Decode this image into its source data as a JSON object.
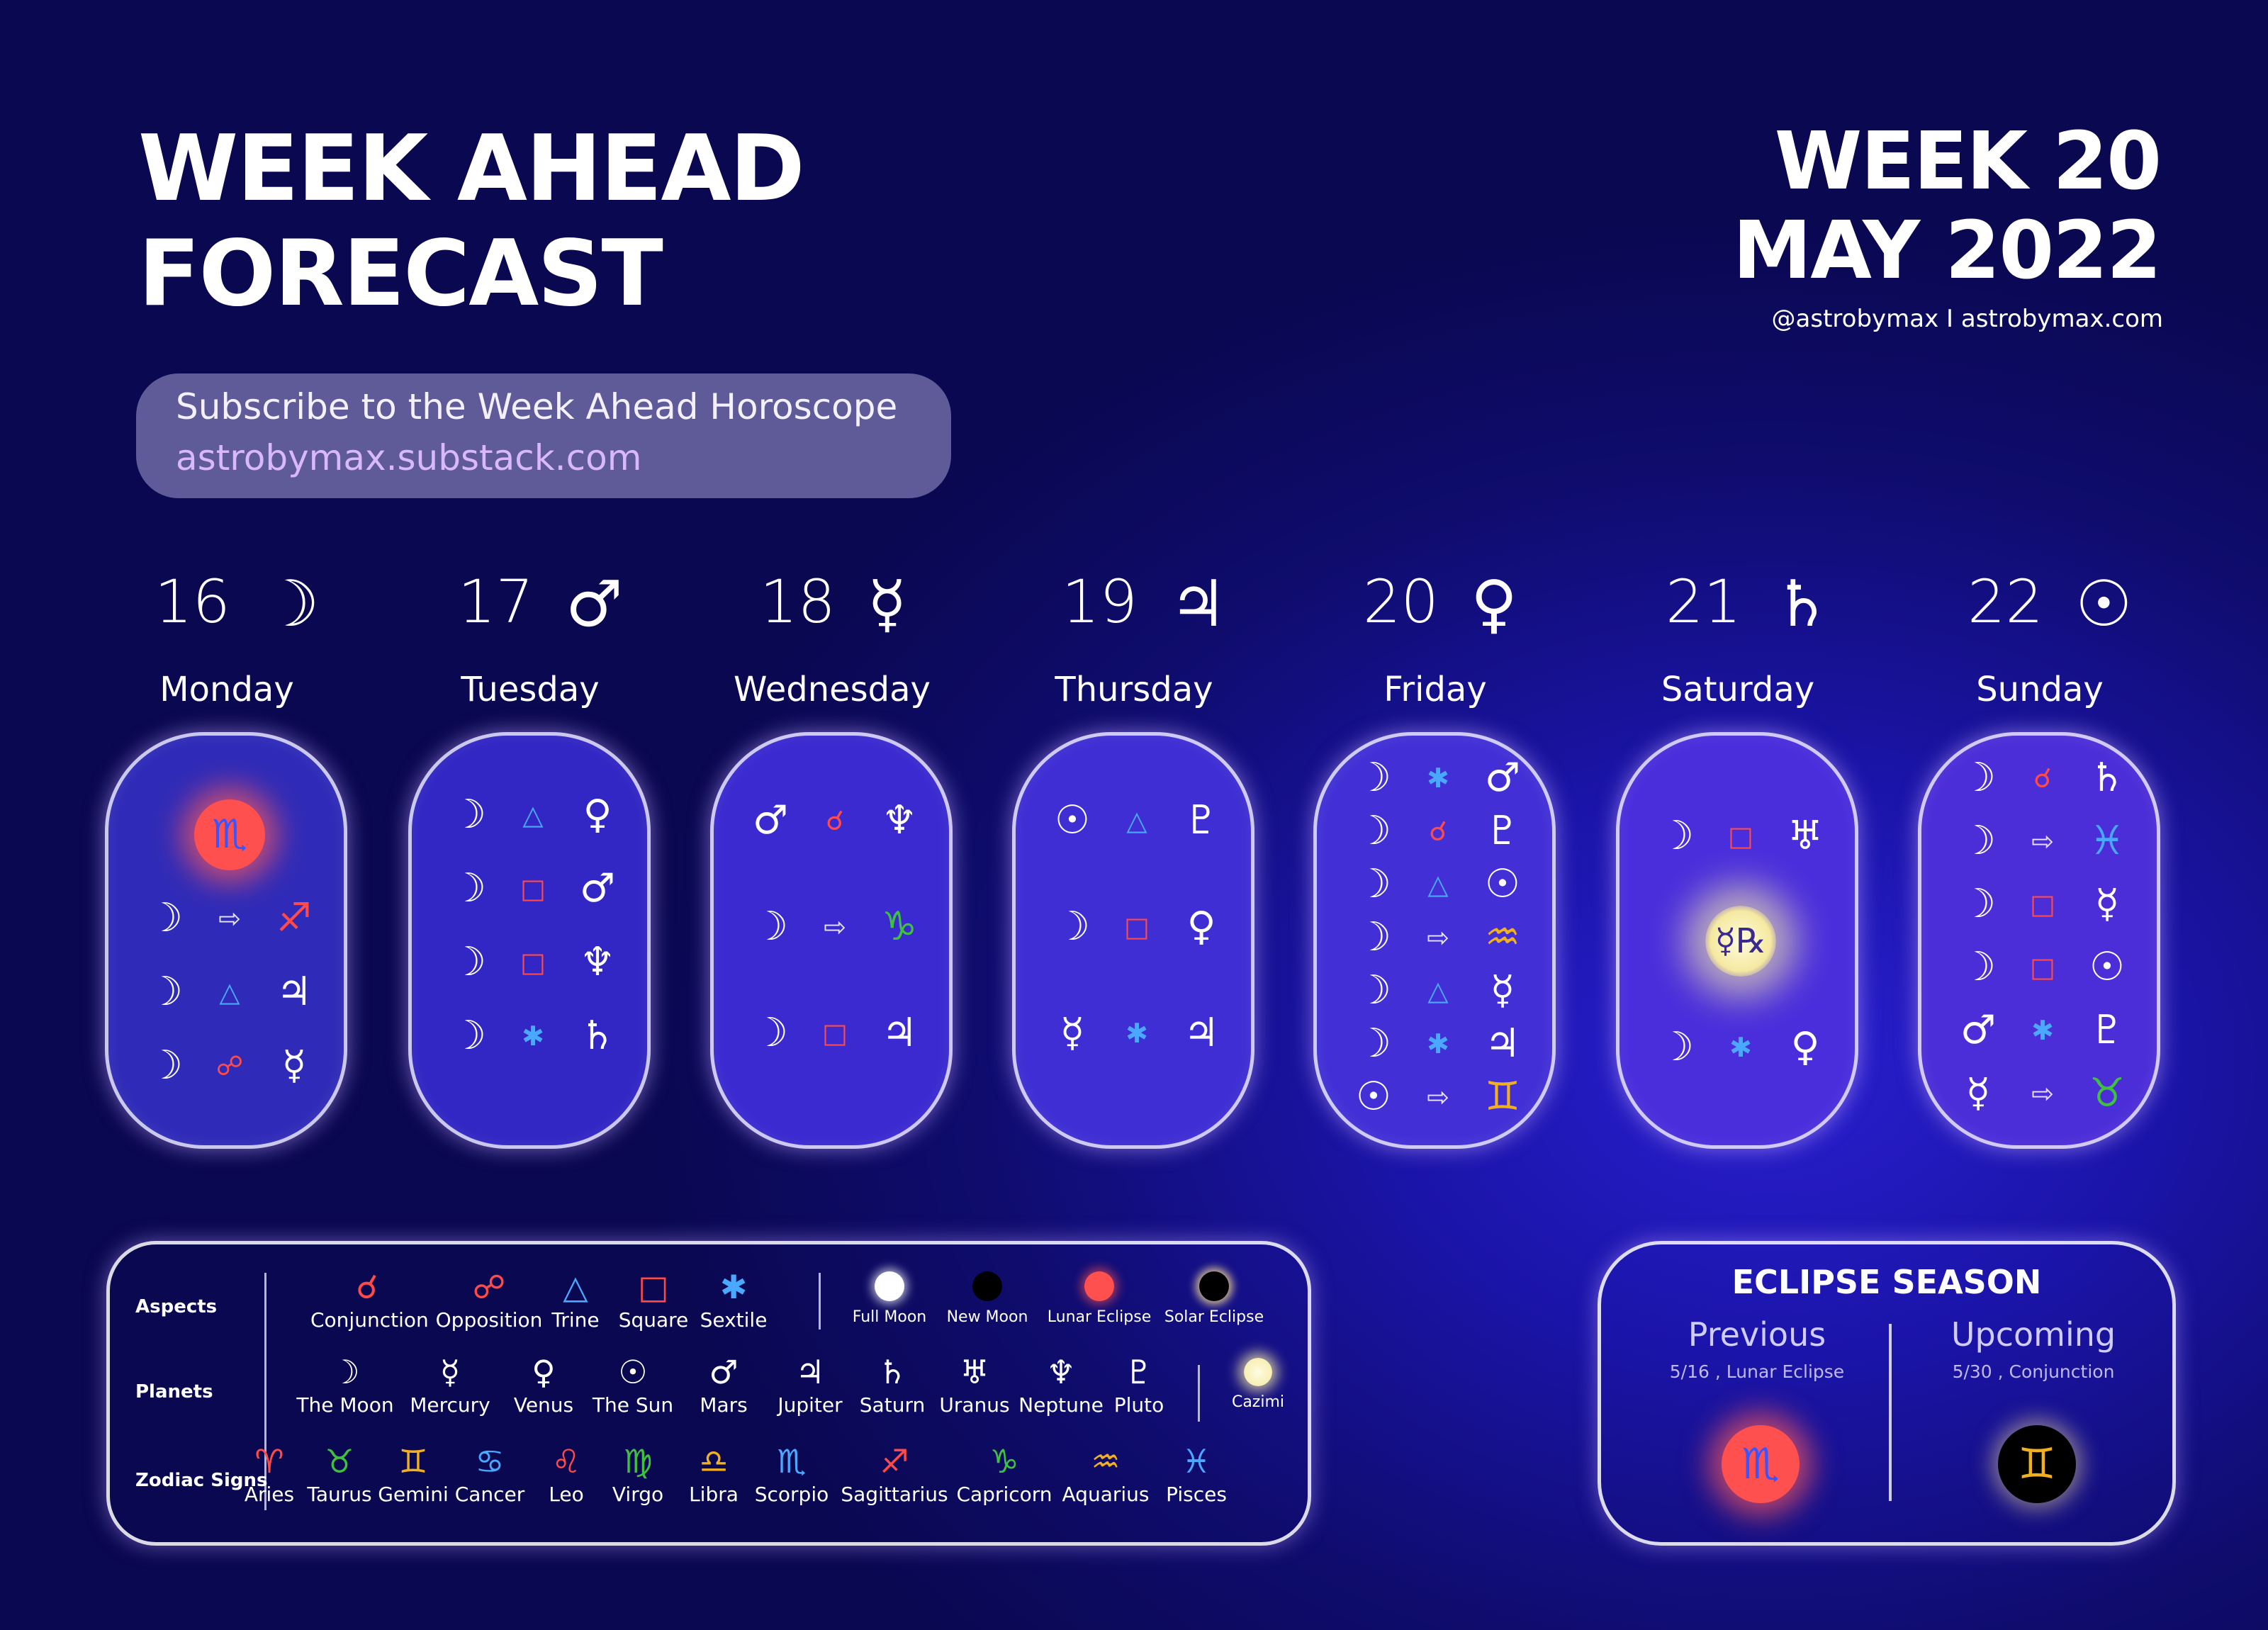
{
  "header": {
    "title_line1": "WEEK AHEAD",
    "title_line2": "FORECAST",
    "week_label": "WEEK 20",
    "month_label": "MAY 2022",
    "social": "@astrobymax  I astrobymax.com"
  },
  "subscribe": {
    "line1": "Subscribe to the Week Ahead Horoscope",
    "line2": "astrobymax.substack.com"
  },
  "days": [
    {
      "num": "16",
      "glyph": "☽",
      "name": "Monday",
      "rows": [
        [
          "☽",
          "⇨",
          "♐"
        ],
        [
          "☽",
          "△",
          "♃"
        ],
        [
          "☽",
          "☍",
          "☿"
        ]
      ],
      "highlight": "♏"
    },
    {
      "num": "17",
      "glyph": "♂",
      "name": "Tuesday",
      "rows": [
        [
          "☽",
          "△",
          "♀"
        ],
        [
          "☽",
          "□",
          "♂"
        ],
        [
          "☽",
          "□",
          "♆"
        ],
        [
          "☽",
          "✱",
          "♄"
        ]
      ]
    },
    {
      "num": "18",
      "glyph": "☿",
      "name": "Wednesday",
      "rows": [
        [
          "♂",
          "☌",
          "♆"
        ],
        [
          "☽",
          "⇨",
          "♑"
        ],
        [
          "☽",
          "□",
          "♃"
        ]
      ]
    },
    {
      "num": "19",
      "glyph": "♃",
      "name": "Thursday",
      "rows": [
        [
          "☉",
          "△",
          "♇"
        ],
        [
          "☽",
          "□",
          "♀"
        ],
        [
          "☿",
          "✱",
          "♃"
        ]
      ]
    },
    {
      "num": "20",
      "glyph": "♀",
      "name": "Friday",
      "rows": [
        [
          "☽",
          "✱",
          "♂"
        ],
        [
          "☽",
          "☌",
          "♇"
        ],
        [
          "☽",
          "△",
          "☉"
        ],
        [
          "☽",
          "⇨",
          "♒"
        ],
        [
          "☽",
          "△",
          "☿"
        ],
        [
          "☽",
          "✱",
          "♃"
        ],
        [
          "☉",
          "⇨",
          "♊"
        ]
      ]
    },
    {
      "num": "21",
      "glyph": "♄",
      "name": "Saturday",
      "rows": [
        [
          "☽",
          "□",
          "♅"
        ],
        [
          "☽",
          "✱",
          "♀"
        ]
      ],
      "retro": "☿℞"
    },
    {
      "num": "22",
      "glyph": "☉",
      "name": "Sunday",
      "rows": [
        [
          "☽",
          "☌",
          "♄"
        ],
        [
          "☽",
          "⇨",
          "♓"
        ],
        [
          "☽",
          "□",
          "☿"
        ],
        [
          "☽",
          "□",
          "☉"
        ],
        [
          "♂",
          "✱",
          "♇"
        ],
        [
          "☿",
          "⇨",
          "♉"
        ]
      ]
    }
  ],
  "legend": {
    "aspects_label": "Aspects",
    "planets_label": "Planets",
    "signs_label": "Zodiac Signs",
    "aspects": [
      {
        "g": "☌",
        "t": "Conjunction",
        "color": "#ff4a4a"
      },
      {
        "g": "☍",
        "t": "Opposition",
        "color": "#ff4a4a"
      },
      {
        "g": "△",
        "t": "Trine",
        "color": "#4aa8ff"
      },
      {
        "g": "□",
        "t": "Square",
        "color": "#ff4a4a"
      },
      {
        "g": "✱",
        "t": "Sextile",
        "color": "#4aa8ff"
      }
    ],
    "moons": [
      "Full Moon",
      "New Moon",
      "Lunar Eclipse",
      "Solar Eclipse"
    ],
    "planets": [
      {
        "g": "☽",
        "t": "The Moon"
      },
      {
        "g": "☿",
        "t": "Mercury"
      },
      {
        "g": "♀",
        "t": "Venus"
      },
      {
        "g": "☉",
        "t": "The Sun"
      },
      {
        "g": "♂",
        "t": "Mars"
      },
      {
        "g": "♃",
        "t": "Jupiter"
      },
      {
        "g": "♄",
        "t": "Saturn"
      },
      {
        "g": "♅",
        "t": "Uranus"
      },
      {
        "g": "♆",
        "t": "Neptune"
      },
      {
        "g": "♇",
        "t": "Pluto"
      }
    ],
    "cazimi": "Cazimi",
    "signs": [
      {
        "g": "♈",
        "t": "Aries",
        "color": "#ff4a4a"
      },
      {
        "g": "♉",
        "t": "Taurus",
        "color": "#3fc13f"
      },
      {
        "g": "♊",
        "t": "Gemini",
        "color": "#f0b020"
      },
      {
        "g": "♋",
        "t": "Cancer",
        "color": "#4aa8ff"
      },
      {
        "g": "♌",
        "t": "Leo",
        "color": "#ff4a4a"
      },
      {
        "g": "♍",
        "t": "Virgo",
        "color": "#3fc13f"
      },
      {
        "g": "♎",
        "t": "Libra",
        "color": "#f0b020"
      },
      {
        "g": "♏",
        "t": "Scorpio",
        "color": "#4aa8ff"
      },
      {
        "g": "♐",
        "t": "Sagittarius",
        "color": "#ff4a4a"
      },
      {
        "g": "♑",
        "t": "Capricorn",
        "color": "#3fc13f"
      },
      {
        "g": "♒",
        "t": "Aquarius",
        "color": "#f0b020"
      },
      {
        "g": "♓",
        "t": "Pisces",
        "color": "#4aa8ff"
      }
    ]
  },
  "eclipse": {
    "title": "ECLIPSE SEASON",
    "previous_label": "Previous",
    "previous_detail": "5/16 , Lunar Eclipse",
    "previous_sign": "♏",
    "upcoming_label": "Upcoming",
    "upcoming_detail": "5/30 , Conjunction",
    "upcoming_sign": "♊"
  },
  "colors": {
    "red": "#ff4a4a",
    "blue": "#4aa8ff",
    "green": "#3fc13f",
    "gold": "#f0b020",
    "card_bg": "#3f2fd0"
  }
}
